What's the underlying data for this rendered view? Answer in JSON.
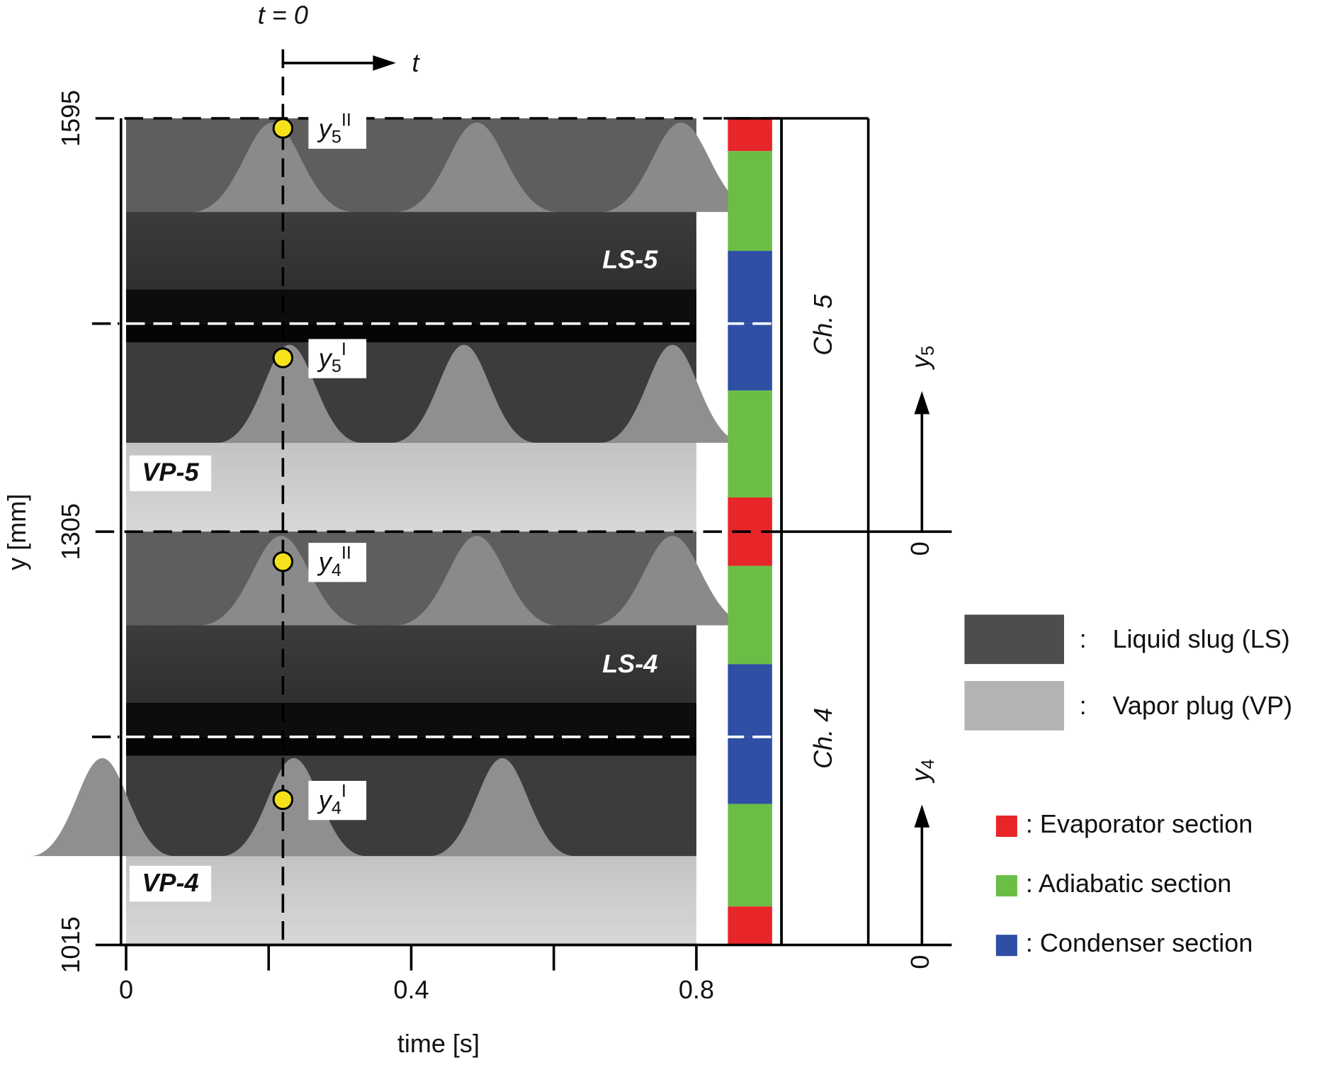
{
  "chart_data": {
    "type": "spacetime",
    "x_label": "time [s]",
    "y_label": "y [mm]",
    "xlim": [
      0,
      0.8
    ],
    "xticks": [
      0,
      0.4,
      0.8
    ],
    "xminor": [
      0.2,
      0.6
    ],
    "ylim": [
      1015,
      1595
    ],
    "yticks": [
      1015,
      1305,
      1595
    ],
    "t0": 0.22,
    "t0_label": "t = 0",
    "t_arrow_label": "t",
    "points": [
      {
        "symbol": "y",
        "sub": "5",
        "sup": "II",
        "y": 1588
      },
      {
        "symbol": "y",
        "sub": "5",
        "sup": "I",
        "y": 1427
      },
      {
        "symbol": "y",
        "sub": "4",
        "sup": "II",
        "y": 1284
      },
      {
        "symbol": "y",
        "sub": "4",
        "sup": "I",
        "y": 1117
      }
    ],
    "slug_boundaries": [
      1451,
      1161
    ],
    "region_labels": [
      "LS-5",
      "VP-5",
      "LS-4",
      "VP-4"
    ],
    "channels": [
      {
        "name": "Ch. 5",
        "axis": {
          "symbol": "y",
          "sub": "5"
        },
        "origin": 0,
        "from": 1305,
        "to": 1595
      },
      {
        "name": "Ch. 4",
        "axis": {
          "symbol": "y",
          "sub": "4"
        },
        "origin": 0,
        "from": 1015,
        "to": 1305
      }
    ],
    "phase_legend": {
      "separator": ":",
      "items": [
        {
          "text": "Liquid slug (LS)",
          "color": "#4d4d4d"
        },
        {
          "text": "Vapor plug (VP)",
          "color": "#b3b3b3"
        }
      ]
    },
    "section_legend": [
      {
        "text": ": Evaporator section",
        "color": "#e8262a"
      },
      {
        "text": ": Adiabatic section",
        "color": "#6abd45"
      },
      {
        "text": ": Condenser section",
        "color": "#2e4fa3"
      }
    ],
    "sections": [
      {
        "from": 1572,
        "to": 1595,
        "kind": 0
      },
      {
        "from": 1502,
        "to": 1572,
        "kind": 1
      },
      {
        "from": 1451,
        "to": 1502,
        "kind": 2
      },
      {
        "from": 1404,
        "to": 1451,
        "kind": 2
      },
      {
        "from": 1329,
        "to": 1404,
        "kind": 1
      },
      {
        "from": 1281,
        "to": 1329,
        "kind": 0
      },
      {
        "from": 1212,
        "to": 1281,
        "kind": 1
      },
      {
        "from": 1161,
        "to": 1212,
        "kind": 2
      },
      {
        "from": 1114,
        "to": 1161,
        "kind": 2
      },
      {
        "from": 1042,
        "to": 1114,
        "kind": 1
      },
      {
        "from": 1015,
        "to": 1042,
        "kind": 0
      }
    ]
  }
}
